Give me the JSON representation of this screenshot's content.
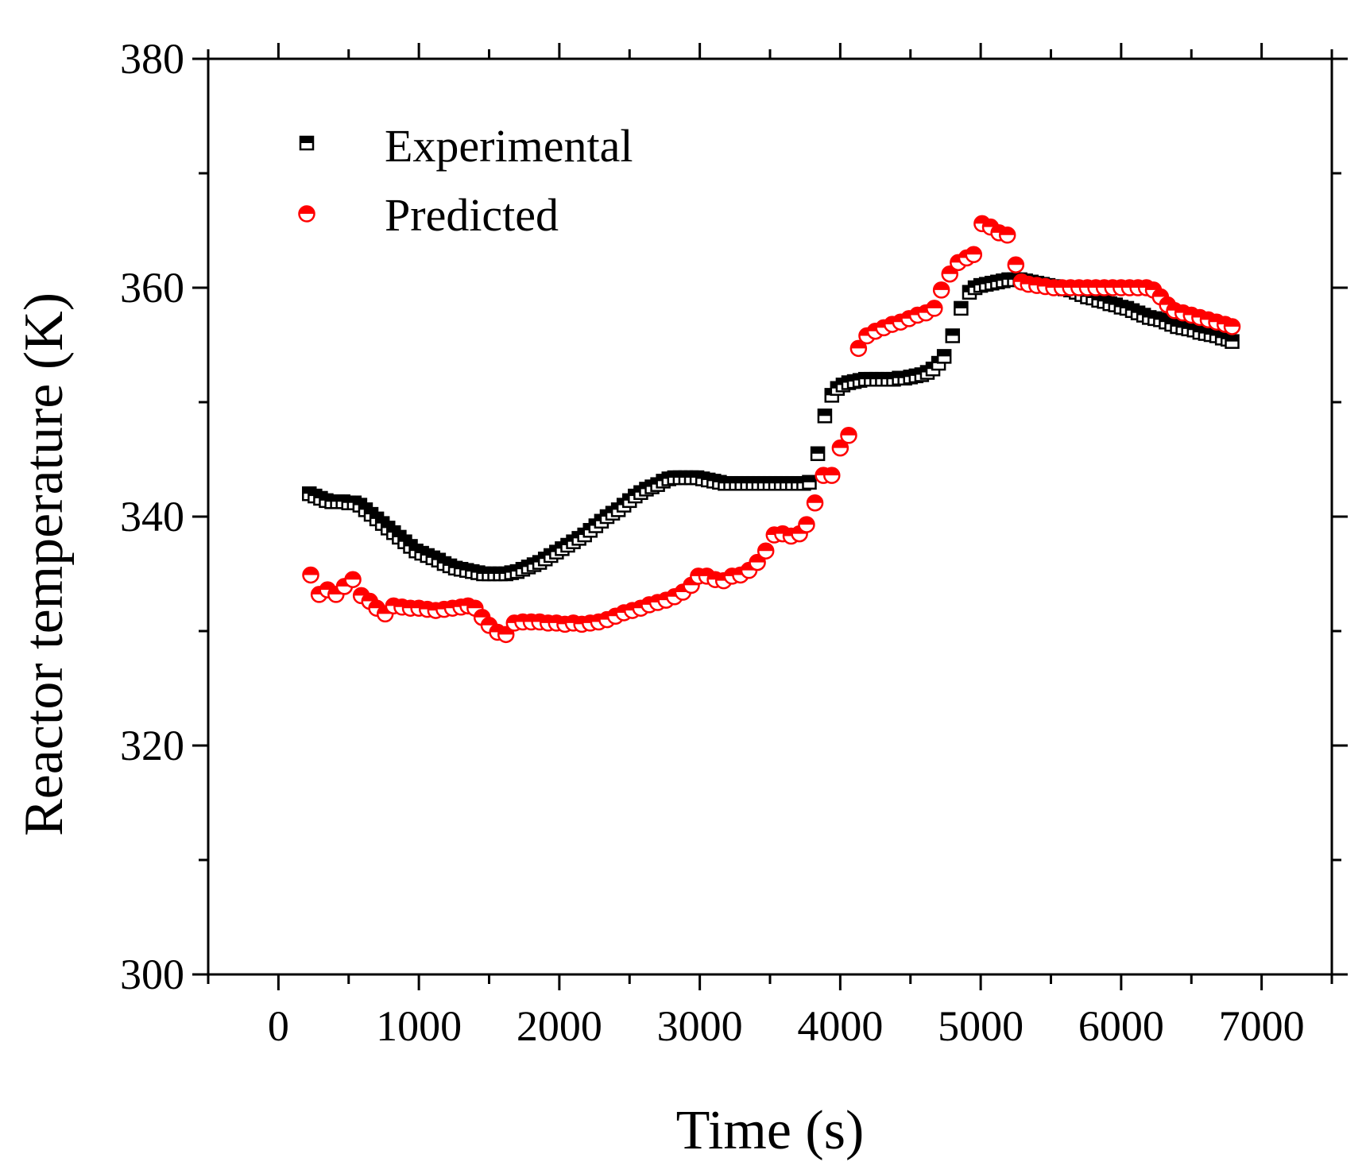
{
  "chart_data": {
    "type": "scatter",
    "title": "",
    "xlabel": "Time (s)",
    "ylabel": "Reactor temperature (K)",
    "xlim": [
      -500,
      7500
    ],
    "ylim": [
      300,
      380
    ],
    "xticks": [
      0,
      1000,
      2000,
      3000,
      4000,
      5000,
      6000,
      7000
    ],
    "yticks": [
      300,
      320,
      340,
      360,
      380
    ],
    "grid": false,
    "legend_position": "top-left",
    "colors": {
      "experimental": "#000000",
      "predicted": "#ff0000"
    },
    "series": [
      {
        "name": "Experimental",
        "marker": "half-filled-square",
        "color": "#000000",
        "x": [
          220,
          260,
          300,
          340,
          380,
          420,
          460,
          500,
          540,
          580,
          620,
          660,
          700,
          740,
          780,
          820,
          860,
          900,
          940,
          980,
          1020,
          1060,
          1100,
          1140,
          1180,
          1220,
          1260,
          1300,
          1340,
          1380,
          1420,
          1460,
          1500,
          1540,
          1580,
          1620,
          1660,
          1700,
          1740,
          1780,
          1820,
          1860,
          1900,
          1940,
          1980,
          2020,
          2060,
          2100,
          2140,
          2180,
          2220,
          2260,
          2300,
          2340,
          2380,
          2420,
          2460,
          2500,
          2540,
          2580,
          2620,
          2660,
          2700,
          2740,
          2780,
          2820,
          2860,
          2900,
          2940,
          2980,
          3020,
          3060,
          3100,
          3140,
          3180,
          3220,
          3260,
          3300,
          3340,
          3380,
          3420,
          3460,
          3500,
          3540,
          3580,
          3620,
          3660,
          3700,
          3740,
          3780,
          3840,
          3890,
          3940,
          3980,
          4020,
          4060,
          4100,
          4140,
          4180,
          4220,
          4260,
          4300,
          4340,
          4380,
          4420,
          4460,
          4500,
          4540,
          4580,
          4620,
          4660,
          4700,
          4740,
          4800,
          4860,
          4920,
          4960,
          5000,
          5040,
          5080,
          5120,
          5160,
          5200,
          5240,
          5280,
          5320,
          5360,
          5400,
          5440,
          5480,
          5520,
          5560,
          5600,
          5640,
          5680,
          5720,
          5760,
          5800,
          5840,
          5880,
          5920,
          5960,
          6000,
          6040,
          6080,
          6120,
          6160,
          6200,
          6240,
          6280,
          6320,
          6360,
          6400,
          6440,
          6480,
          6520,
          6560,
          6600,
          6640,
          6680,
          6720,
          6760,
          6790
        ],
        "y": [
          342.0,
          341.8,
          341.6,
          341.4,
          341.3,
          341.3,
          341.3,
          341.2,
          341.2,
          341.0,
          340.6,
          340.2,
          339.8,
          339.4,
          339.0,
          338.6,
          338.2,
          337.8,
          337.4,
          337.0,
          336.8,
          336.6,
          336.4,
          336.2,
          335.9,
          335.7,
          335.5,
          335.4,
          335.3,
          335.2,
          335.1,
          335.0,
          335.0,
          335.0,
          335.0,
          335.0,
          335.1,
          335.2,
          335.4,
          335.6,
          335.8,
          336.0,
          336.3,
          336.6,
          336.9,
          337.2,
          337.5,
          337.8,
          338.1,
          338.4,
          338.8,
          339.2,
          339.6,
          340.0,
          340.3,
          340.6,
          341.0,
          341.4,
          341.8,
          342.1,
          342.4,
          342.6,
          342.8,
          343.1,
          343.3,
          343.4,
          343.4,
          343.4,
          343.4,
          343.4,
          343.3,
          343.2,
          343.1,
          343.0,
          342.9,
          342.9,
          342.9,
          342.9,
          342.9,
          342.9,
          342.9,
          342.9,
          342.9,
          342.9,
          342.9,
          342.9,
          342.9,
          342.9,
          342.9,
          343.0,
          345.5,
          348.8,
          350.6,
          351.2,
          351.5,
          351.7,
          351.8,
          351.9,
          352.0,
          352.0,
          352.0,
          352.0,
          352.0,
          352.0,
          352.1,
          352.1,
          352.2,
          352.3,
          352.4,
          352.6,
          352.9,
          353.4,
          354.0,
          355.8,
          358.2,
          359.6,
          360.0,
          360.2,
          360.3,
          360.4,
          360.5,
          360.6,
          360.7,
          360.7,
          360.7,
          360.6,
          360.5,
          360.4,
          360.3,
          360.2,
          360.1,
          360.0,
          359.9,
          359.8,
          359.6,
          359.4,
          359.2,
          359.1,
          358.9,
          358.8,
          358.6,
          358.5,
          358.3,
          358.2,
          358.0,
          357.8,
          357.6,
          357.4,
          357.3,
          357.2,
          357.0,
          356.8,
          356.6,
          356.5,
          356.4,
          356.3,
          356.1,
          356.0,
          355.9,
          355.8,
          355.6,
          355.5,
          355.3
        ]
      },
      {
        "name": "Predicted",
        "marker": "half-filled-circle",
        "color": "#ff0000",
        "x": [
          230,
          290,
          350,
          410,
          470,
          530,
          590,
          650,
          700,
          760,
          820,
          880,
          940,
          1000,
          1060,
          1120,
          1180,
          1240,
          1300,
          1350,
          1400,
          1450,
          1500,
          1560,
          1620,
          1680,
          1740,
          1800,
          1860,
          1920,
          1980,
          2040,
          2100,
          2160,
          2220,
          2280,
          2340,
          2400,
          2460,
          2520,
          2580,
          2640,
          2700,
          2760,
          2820,
          2880,
          2940,
          2990,
          3050,
          3110,
          3170,
          3230,
          3290,
          3350,
          3410,
          3470,
          3530,
          3590,
          3650,
          3710,
          3760,
          3820,
          3880,
          3940,
          4000,
          4060,
          4130,
          4190,
          4250,
          4310,
          4370,
          4430,
          4490,
          4550,
          4610,
          4670,
          4720,
          4780,
          4840,
          4900,
          4950,
          5010,
          5070,
          5130,
          5190,
          5250,
          5290,
          5340,
          5400,
          5460,
          5520,
          5580,
          5640,
          5700,
          5760,
          5820,
          5880,
          5940,
          6000,
          6060,
          6120,
          6180,
          6230,
          6280,
          6330,
          6380,
          6440,
          6500,
          6560,
          6620,
          6680,
          6740,
          6790
        ],
        "y": [
          334.9,
          333.2,
          333.6,
          333.2,
          333.9,
          334.5,
          333.1,
          332.6,
          332.0,
          331.5,
          332.2,
          332.1,
          332.0,
          332.0,
          331.9,
          331.8,
          331.9,
          332.0,
          332.1,
          332.2,
          332.0,
          331.2,
          330.5,
          329.9,
          329.7,
          330.7,
          330.8,
          330.8,
          330.8,
          330.7,
          330.7,
          330.6,
          330.7,
          330.6,
          330.7,
          330.8,
          331.0,
          331.3,
          331.6,
          331.8,
          332.0,
          332.3,
          332.5,
          332.7,
          333.0,
          333.4,
          334.0,
          334.8,
          334.8,
          334.5,
          334.4,
          334.8,
          334.9,
          335.3,
          336.0,
          337.0,
          338.4,
          338.5,
          338.3,
          338.5,
          339.3,
          341.2,
          343.6,
          343.6,
          346.0,
          347.1,
          354.7,
          355.8,
          356.2,
          356.5,
          356.8,
          357.0,
          357.3,
          357.6,
          357.8,
          358.2,
          359.8,
          361.2,
          362.2,
          362.6,
          362.9,
          365.6,
          365.3,
          364.8,
          364.6,
          362.0,
          360.5,
          360.3,
          360.2,
          360.1,
          360.0,
          360.0,
          360.0,
          360.0,
          360.0,
          360.0,
          360.0,
          360.0,
          360.0,
          360.0,
          360.0,
          360.0,
          359.8,
          359.2,
          358.5,
          358.0,
          357.8,
          357.6,
          357.4,
          357.2,
          357.0,
          356.8,
          356.6
        ]
      }
    ]
  }
}
